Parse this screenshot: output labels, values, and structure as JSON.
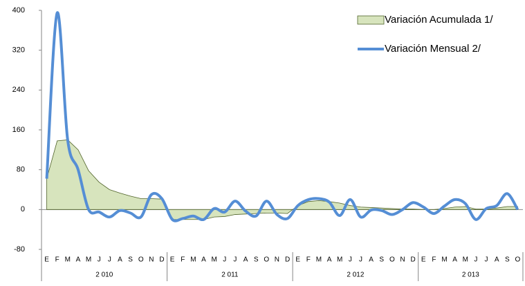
{
  "chart_data": {
    "type": "line",
    "categories": [
      "E",
      "F",
      "M",
      "A",
      "M",
      "J",
      "J",
      "A",
      "S",
      "O",
      "N",
      "D",
      "E",
      "F",
      "M",
      "A",
      "M",
      "J",
      "J",
      "A",
      "S",
      "O",
      "N",
      "D",
      "E",
      "F",
      "M",
      "A",
      "M",
      "J",
      "J",
      "A",
      "S",
      "O",
      "N",
      "D",
      "E",
      "F",
      "M",
      "A",
      "M",
      "J",
      "J",
      "A",
      "S",
      "O"
    ],
    "category_groups": [
      "2 010",
      "2 011",
      "2 012",
      "2 013"
    ],
    "series": [
      {
        "name": "Variación Acumulada 1/",
        "type": "area",
        "color": "#d7e4bd",
        "edge_color": "#4f6228",
        "values": [
          62,
          138,
          140,
          120,
          78,
          55,
          40,
          33,
          27,
          22,
          22,
          21,
          -20,
          -20,
          -20,
          -20,
          -15,
          -14,
          -10,
          -9,
          -8,
          -7,
          -7,
          -8,
          8,
          16,
          18,
          16,
          13,
          8,
          5,
          4,
          3,
          2,
          1,
          1,
          0,
          0,
          2,
          5,
          6,
          1,
          1,
          3,
          6,
          6
        ]
      },
      {
        "name": "Variación Mensual 2/",
        "type": "line",
        "color": "#558ed5",
        "values": [
          62,
          395,
          140,
          80,
          0,
          -5,
          -15,
          -2,
          -7,
          -15,
          30,
          22,
          -20,
          -18,
          -13,
          -20,
          2,
          -5,
          17,
          -3,
          -13,
          17,
          -10,
          -18,
          8,
          20,
          22,
          15,
          -12,
          20,
          -15,
          -1,
          -2,
          -10,
          0,
          14,
          5,
          -8,
          7,
          20,
          12,
          -20,
          2,
          8,
          32,
          0
        ]
      }
    ],
    "ylim": [
      -80,
      400
    ],
    "yticks": [
      -80,
      0,
      80,
      160,
      240,
      320,
      400
    ]
  }
}
